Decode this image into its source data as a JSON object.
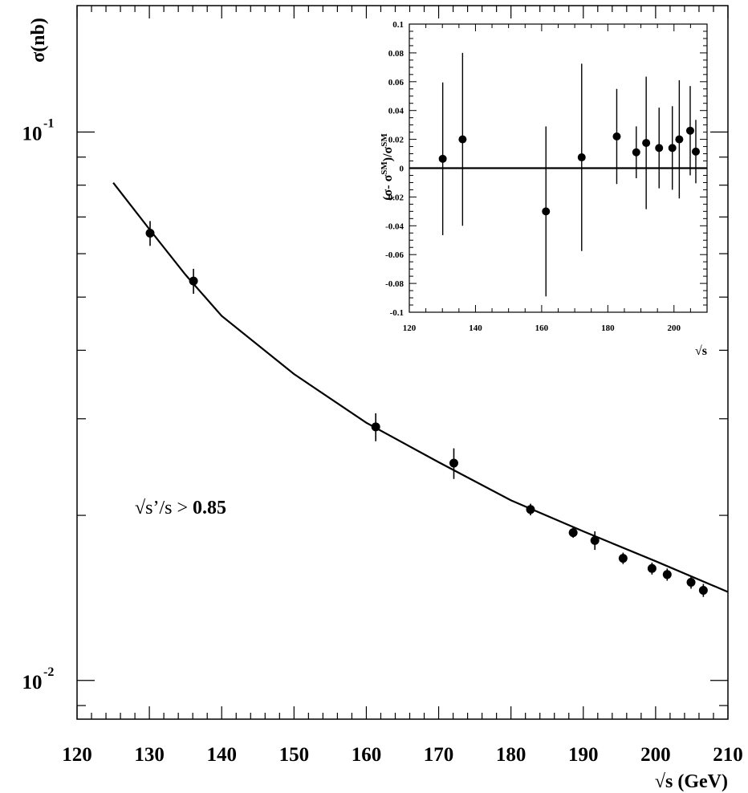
{
  "chart_data": [
    {
      "type": "scatter",
      "title": "",
      "xlabel": "√s (GeV)",
      "ylabel": "σ(nb)",
      "yscale": "log",
      "xlim": [
        120,
        210
      ],
      "ylim": [
        0.0085,
        0.17
      ],
      "x_ticks": [
        "120",
        "130",
        "140",
        "150",
        "160",
        "170",
        "180",
        "190",
        "200",
        "210"
      ],
      "y_ticks": [
        {
          "base": "10",
          "exp": "-1",
          "value": 0.1
        },
        {
          "base": "10",
          "exp": "-2",
          "value": 0.01
        }
      ],
      "annotation": {
        "text": "√s’/s > ",
        "value": "0.85"
      },
      "series": [
        {
          "type": "errorbar",
          "points": [
            {
              "x": 130.1,
              "y": 0.0654,
              "err_low": 0.0034,
              "err_high": 0.0034
            },
            {
              "x": 136.1,
              "y": 0.0535,
              "err_low": 0.0028,
              "err_high": 0.0028
            },
            {
              "x": 161.3,
              "y": 0.029,
              "err_low": 0.0017,
              "err_high": 0.0017
            },
            {
              "x": 172.1,
              "y": 0.0249,
              "err_low": 0.0016,
              "err_high": 0.0016
            },
            {
              "x": 182.7,
              "y": 0.0205,
              "err_low": 0.0005,
              "err_high": 0.0005
            },
            {
              "x": 188.6,
              "y": 0.0186,
              "err_low": 0.0004,
              "err_high": 0.0004
            },
            {
              "x": 191.6,
              "y": 0.018,
              "err_low": 0.0007,
              "err_high": 0.0007
            },
            {
              "x": 195.5,
              "y": 0.0167,
              "err_low": 0.0004,
              "err_high": 0.0004
            },
            {
              "x": 199.5,
              "y": 0.016,
              "err_low": 0.0004,
              "err_high": 0.0004
            },
            {
              "x": 201.6,
              "y": 0.0156,
              "err_low": 0.0004,
              "err_high": 0.0004
            },
            {
              "x": 204.9,
              "y": 0.0151,
              "err_low": 0.0004,
              "err_high": 0.0004
            },
            {
              "x": 206.6,
              "y": 0.0146,
              "err_low": 0.0004,
              "err_high": 0.0004
            }
          ]
        },
        {
          "type": "line",
          "x": [
            125,
            130,
            135,
            140,
            150,
            160,
            170,
            180,
            190,
            200,
            210
          ],
          "y": [
            0.0808,
            0.0665,
            0.0549,
            0.0462,
            0.0362,
            0.0295,
            0.025,
            0.0213,
            0.0187,
            0.0165,
            0.0145
          ]
        }
      ]
    },
    {
      "type": "scatter",
      "title": "",
      "xlabel": "√s",
      "ylabel": "(σ- σSM)/σSM",
      "ylabel_parts": {
        "open": "(σ- σ",
        "sup1": "SM",
        "mid": ")/σ",
        "sup2": "SM"
      },
      "xlim": [
        120,
        210
      ],
      "ylim": [
        -0.1,
        0.1
      ],
      "x_ticks": [
        "120",
        "140",
        "160",
        "180",
        "200"
      ],
      "y_ticks": [
        "0.1",
        "0.08",
        "0.06",
        "0.04",
        "0.02",
        "0",
        "-0.02",
        "-0.04",
        "-0.06",
        "-0.08",
        "-0.1"
      ],
      "reference_line": 0,
      "series": [
        {
          "type": "errorbar",
          "points": [
            {
              "x": 130.1,
              "y": 0.0065,
              "err": 0.053
            },
            {
              "x": 136.1,
              "y": 0.02,
              "err": 0.06
            },
            {
              "x": 161.3,
              "y": -0.03,
              "err": 0.059
            },
            {
              "x": 172.1,
              "y": 0.0075,
              "err": 0.065
            },
            {
              "x": 182.7,
              "y": 0.022,
              "err": 0.033
            },
            {
              "x": 188.6,
              "y": 0.011,
              "err": 0.018
            },
            {
              "x": 191.6,
              "y": 0.0175,
              "err": 0.046
            },
            {
              "x": 195.5,
              "y": 0.014,
              "err": 0.028
            },
            {
              "x": 199.5,
              "y": 0.014,
              "err": 0.029
            },
            {
              "x": 201.6,
              "y": 0.02,
              "err": 0.041
            },
            {
              "x": 204.9,
              "y": 0.026,
              "err": 0.031
            },
            {
              "x": 206.6,
              "y": 0.0115,
              "err": 0.022
            }
          ]
        }
      ]
    }
  ]
}
